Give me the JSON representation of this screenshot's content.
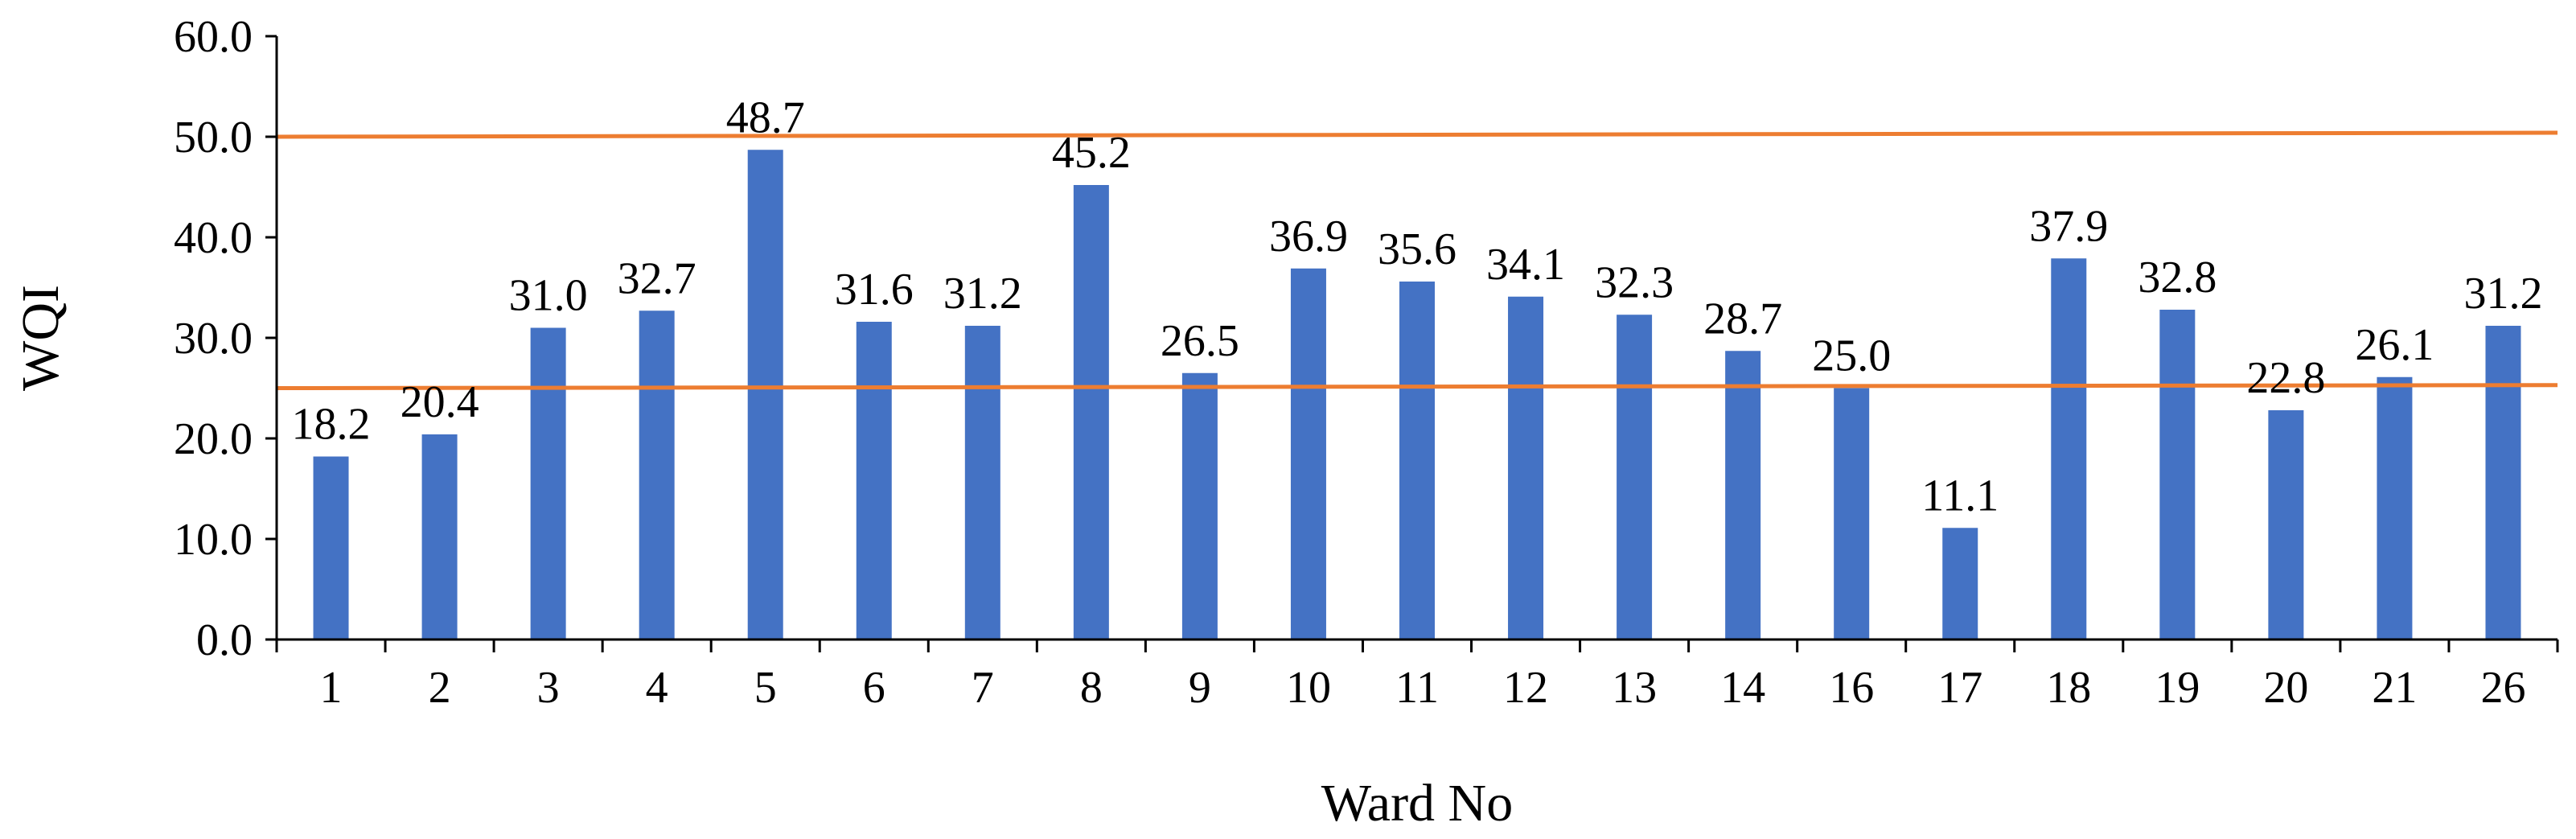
{
  "chart_data": {
    "type": "bar",
    "categories": [
      "1",
      "2",
      "3",
      "4",
      "5",
      "6",
      "7",
      "8",
      "9",
      "10",
      "11",
      "12",
      "13",
      "14",
      "16",
      "17",
      "18",
      "19",
      "20",
      "21",
      "26"
    ],
    "values": [
      18.2,
      20.4,
      31.0,
      32.7,
      48.7,
      31.6,
      31.2,
      45.2,
      26.5,
      36.9,
      35.6,
      34.1,
      32.3,
      28.7,
      25.0,
      11.1,
      37.9,
      32.8,
      22.8,
      26.1,
      31.2
    ],
    "value_labels": [
      "18.2",
      "20.4",
      "31.0",
      "32.7",
      "48.7",
      "31.6",
      "31.2",
      "45.2",
      "26.5",
      "36.9",
      "35.6",
      "34.1",
      "32.3",
      "28.7",
      "25.0",
      "11.1",
      "37.9",
      "32.8",
      "22.8",
      "26.1",
      "31.2"
    ],
    "xlabel": "Ward No",
    "ylabel": "WQI",
    "ylim": [
      0,
      60
    ],
    "yticks": [
      "0.0",
      "10.0",
      "20.0",
      "30.0",
      "40.0",
      "50.0",
      "60.0"
    ],
    "ytick_values": [
      0,
      10,
      20,
      30,
      40,
      50,
      60
    ],
    "reference_lines": [
      {
        "y_start": 25.0,
        "y_end": 25.3
      },
      {
        "y_start": 50.0,
        "y_end": 50.4
      }
    ],
    "grid": false,
    "legend": "none",
    "colors": {
      "bar": "#4472C4",
      "reference_line": "#ED7D31",
      "axis": "#000000"
    }
  }
}
